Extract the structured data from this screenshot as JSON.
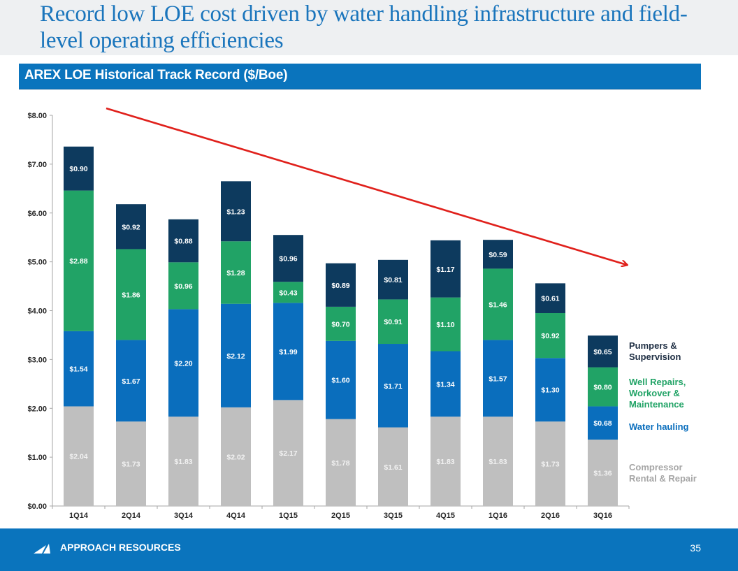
{
  "slide": {
    "title": "Record low LOE cost driven by water handling infrastructure and field-level operating efficiencies",
    "subheader": "AREX LOE Historical Track Record ($/Boe)",
    "footer_brand": "APPROACH RESOURCES",
    "page_number": "35"
  },
  "colors": {
    "title": "#1a75bc",
    "header_bar": "#0a74bd",
    "pumpers": "#0d3a5e",
    "well_repairs": "#21a366",
    "water_hauling": "#0a6ebd",
    "compressor": "#bfbfbf",
    "trend_arrow": "#e0201b"
  },
  "chart_data": {
    "type": "bar",
    "stacked": true,
    "title": "AREX LOE Historical Track Record ($/Boe)",
    "xlabel": "",
    "ylabel": "",
    "ylim": [
      0,
      8
    ],
    "yticks": [
      0,
      1,
      2,
      3,
      4,
      5,
      6,
      7,
      8
    ],
    "ytick_labels": [
      "$0.00",
      "$1.00",
      "$2.00",
      "$3.00",
      "$4.00",
      "$5.00",
      "$6.00",
      "$7.00",
      "$8.00"
    ],
    "grid": false,
    "legend_position": "right",
    "categories": [
      "1Q14",
      "2Q14",
      "3Q14",
      "4Q14",
      "1Q15",
      "2Q15",
      "3Q15",
      "4Q15",
      "1Q16",
      "2Q16",
      "3Q16"
    ],
    "series": [
      {
        "name": "Compressor Rental & Repair",
        "legend_lines": [
          "Compressor",
          "Rental & Repair"
        ],
        "color": "#bfbfbf",
        "values": [
          2.04,
          1.73,
          1.83,
          2.02,
          2.17,
          1.78,
          1.61,
          1.83,
          1.83,
          1.73,
          1.36
        ],
        "labels": [
          "$2.04",
          "$1.73",
          "$1.83",
          "$2.02",
          "$2.17",
          "$1.78",
          "$1.61",
          "$1.83",
          "$1.83",
          "$1.73",
          "$1.36"
        ]
      },
      {
        "name": "Water hauling",
        "legend_lines": [
          "Water hauling"
        ],
        "color": "#0a6ebd",
        "values": [
          1.54,
          1.67,
          2.2,
          2.12,
          1.99,
          1.6,
          1.71,
          1.34,
          1.57,
          1.3,
          0.68
        ],
        "labels": [
          "$1.54",
          "$1.67",
          "$2.20",
          "$2.12",
          "$1.99",
          "$1.60",
          "$1.71",
          "$1.34",
          "$1.57",
          "$1.30",
          "$0.68"
        ]
      },
      {
        "name": "Well Repairs, Workover & Maintenance",
        "legend_lines": [
          "Well Repairs,",
          "Workover &",
          "Maintenance"
        ],
        "color": "#21a366",
        "values": [
          2.88,
          1.86,
          0.96,
          1.28,
          0.43,
          0.7,
          0.91,
          1.1,
          1.46,
          0.92,
          0.8
        ],
        "labels": [
          "$2.88",
          "$1.86",
          "$0.96",
          "$1.28",
          "$0.43",
          "$0.70",
          "$0.91",
          "$1.10",
          "$1.46",
          "$0.92",
          "$0.80"
        ]
      },
      {
        "name": "Pumpers & Supervision",
        "legend_lines": [
          "Pumpers &",
          "Supervision"
        ],
        "color": "#0d3a5e",
        "values": [
          0.9,
          0.92,
          0.88,
          1.23,
          0.96,
          0.89,
          0.81,
          1.17,
          0.59,
          0.61,
          0.65
        ],
        "labels": [
          "$0.90",
          "$0.92",
          "$0.88",
          "$1.23",
          "$0.96",
          "$0.89",
          "$0.81",
          "$1.17",
          "$0.59",
          "$0.61",
          "$0.65"
        ]
      }
    ],
    "annotations": [
      {
        "type": "trend-arrow",
        "direction": "down",
        "from_category": "1Q14",
        "to_category": "3Q16",
        "description": "declining LOE trend"
      }
    ]
  }
}
